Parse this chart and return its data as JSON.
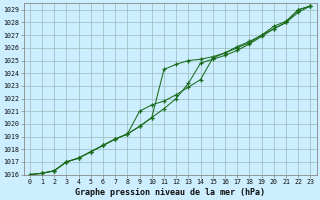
{
  "title": "Graphe pression niveau de la mer (hPa)",
  "background_color": "#cceeff",
  "grid_color": "#99bbbb",
  "line_color": "#1a6b1a",
  "xlim": [
    -0.5,
    23.5
  ],
  "ylim": [
    1016,
    1029.5
  ],
  "x": [
    0,
    1,
    2,
    3,
    4,
    5,
    6,
    7,
    8,
    9,
    10,
    11,
    12,
    13,
    14,
    15,
    16,
    17,
    18,
    19,
    20,
    21,
    22,
    23
  ],
  "line1": [
    1016.0,
    1016.1,
    1016.3,
    1017.0,
    1017.3,
    1017.8,
    1018.3,
    1018.8,
    1019.2,
    1019.8,
    1020.5,
    1021.2,
    1022.0,
    1023.2,
    1024.8,
    1025.1,
    1025.4,
    1025.8,
    1026.3,
    1026.9,
    1027.5,
    1028.0,
    1029.0,
    1029.3
  ],
  "line2": [
    1016.0,
    1016.1,
    1016.3,
    1017.0,
    1017.3,
    1017.8,
    1018.3,
    1018.8,
    1019.2,
    1019.8,
    1020.5,
    1024.3,
    1024.7,
    1025.0,
    1025.1,
    1025.3,
    1025.6,
    1026.1,
    1026.5,
    1027.0,
    1027.7,
    1028.1,
    1029.0,
    1029.3
  ],
  "line3": [
    1016.0,
    1016.1,
    1016.3,
    1017.0,
    1017.3,
    1017.8,
    1018.3,
    1018.8,
    1019.2,
    1021.0,
    1021.5,
    1021.8,
    1022.3,
    1022.9,
    1023.5,
    1025.2,
    1025.6,
    1026.0,
    1026.4,
    1027.0,
    1027.5,
    1028.0,
    1028.8,
    1029.3
  ]
}
